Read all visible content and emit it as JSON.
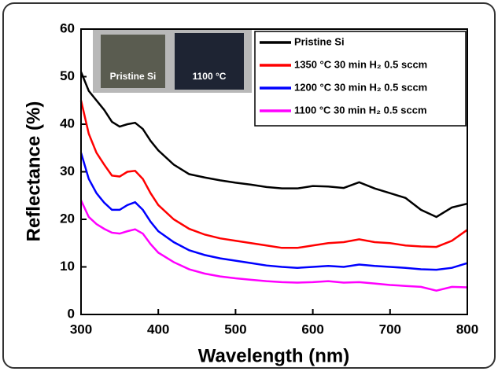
{
  "chart_data": {
    "type": "line",
    "x_label": "Wavelength (nm)",
    "y_label": "Reflectance (%)",
    "x": [
      300,
      310,
      320,
      330,
      340,
      350,
      360,
      370,
      380,
      390,
      400,
      420,
      440,
      460,
      480,
      500,
      520,
      540,
      560,
      580,
      600,
      620,
      640,
      660,
      680,
      700,
      720,
      740,
      760,
      780,
      800
    ],
    "series": [
      {
        "name": "Pristine Si",
        "color": "#000000",
        "values": [
          51,
          47,
          45,
          43,
          40.5,
          39.5,
          40,
          40.3,
          39,
          36.5,
          34.5,
          31.5,
          29.5,
          28.8,
          28.2,
          27.7,
          27.3,
          26.8,
          26.5,
          26.5,
          27,
          26.9,
          26.6,
          27.8,
          26.5,
          25.5,
          24.5,
          22,
          20.5,
          22.5,
          23.3
        ]
      },
      {
        "name": "1350 °C 30 min H₂ 0.5 sccm",
        "color": "#ff0000",
        "values": [
          45,
          38,
          34,
          31.5,
          29.2,
          29,
          30,
          30.2,
          28.5,
          25.5,
          23,
          20,
          18,
          16.8,
          16,
          15.5,
          15,
          14.5,
          14,
          14,
          14.5,
          15,
          15.2,
          15.8,
          15.2,
          15,
          14.5,
          14.3,
          14.2,
          15.5,
          17.8
        ]
      },
      {
        "name": "1200 °C 30 min H₂ 0.5 sccm",
        "color": "#0000ff",
        "values": [
          34,
          28.5,
          25.5,
          23.5,
          22,
          22,
          23,
          23.6,
          22,
          19.5,
          17.5,
          15.2,
          13.5,
          12.5,
          11.8,
          11.3,
          10.8,
          10.3,
          10,
          9.8,
          10,
          10.2,
          10,
          10.5,
          10.2,
          10,
          9.8,
          9.5,
          9.4,
          9.8,
          10.8
        ]
      },
      {
        "name": "1100 °C 30 min H₂ 0.5 sccm",
        "color": "#ff00ff",
        "values": [
          24,
          20.5,
          19,
          18,
          17.2,
          17,
          17.5,
          17.9,
          17,
          14.8,
          13,
          11,
          9.5,
          8.6,
          8,
          7.6,
          7.3,
          7,
          6.8,
          6.7,
          6.8,
          7,
          6.7,
          6.8,
          6.5,
          6.2,
          6,
          5.8,
          5,
          5.8,
          5.7
        ]
      }
    ],
    "xlim": [
      300,
      800
    ],
    "xticks": [
      300,
      400,
      500,
      600,
      700,
      800
    ],
    "ylim": [
      0,
      60
    ],
    "yticks": [
      0,
      10,
      20,
      30,
      40,
      50,
      60
    ],
    "legend": "upper right",
    "inset_labels": [
      "Pristine Si",
      "1100 °C"
    ]
  }
}
